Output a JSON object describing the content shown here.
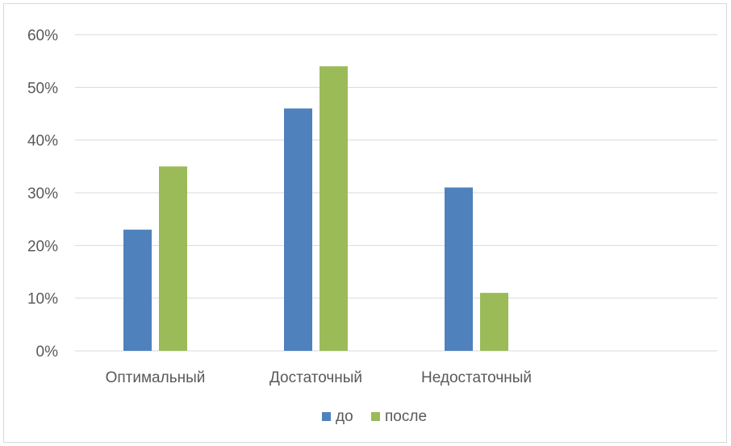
{
  "chart_data": {
    "type": "bar",
    "title": "",
    "xlabel": "",
    "ylabel": "",
    "categories": [
      "Оптимальный",
      "Достаточный",
      "Недостаточный",
      ""
    ],
    "series": [
      {
        "name": "до",
        "color": "#4f81bd",
        "values": [
          23,
          46,
          31,
          null
        ]
      },
      {
        "name": "после",
        "color": "#9bbb59",
        "values": [
          35,
          54,
          11,
          null
        ]
      }
    ],
    "ylim": [
      0,
      60
    ],
    "yticks": [
      "0%",
      "10%",
      "20%",
      "30%",
      "40%",
      "50%",
      "60%"
    ],
    "y_unit": "%",
    "grid": true,
    "legend_position": "bottom"
  }
}
